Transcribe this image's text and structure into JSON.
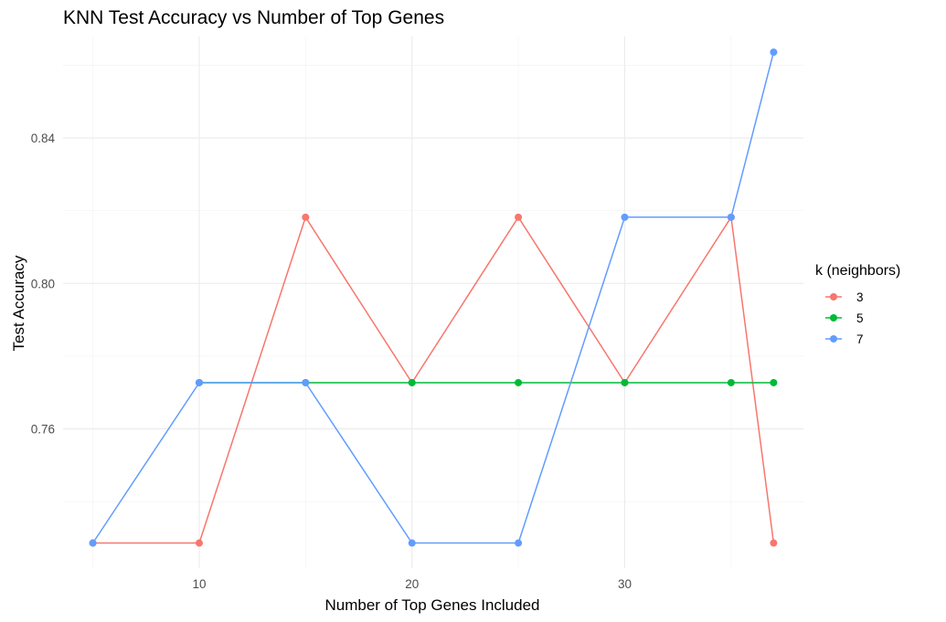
{
  "chart_data": {
    "type": "line",
    "title": "KNN Test Accuracy vs Number of Top Genes",
    "xlabel": "Number of Top Genes Included",
    "ylabel": "Test Accuracy",
    "xlim": [
      3.6,
      38.4
    ],
    "ylim": [
      0.7217,
      0.8679
    ],
    "x_ticks": [
      10,
      20,
      30
    ],
    "x_tick_labels": [
      "10",
      "20",
      "30"
    ],
    "y_ticks": [
      0.76,
      0.8,
      0.84
    ],
    "y_tick_labels": [
      "0.76",
      "0.80",
      "0.84"
    ],
    "x_minor_ticks": [
      5,
      15,
      25,
      35
    ],
    "y_minor_ticks": [
      0.74,
      0.78,
      0.82,
      0.86
    ],
    "grid": true,
    "legend": {
      "title": "k (neighbors)",
      "position": "right",
      "entries": [
        "3",
        "5",
        "7"
      ]
    },
    "series": [
      {
        "name": "3",
        "color": "#F8766D",
        "x": [
          5,
          10,
          15,
          20,
          25,
          30,
          35,
          37
        ],
        "y": [
          0.7286,
          0.7286,
          0.8182,
          0.7727,
          0.8182,
          0.7727,
          0.8182,
          0.7286
        ]
      },
      {
        "name": "5",
        "color": "#00BA38",
        "x": [
          10,
          15,
          20,
          25,
          30,
          35,
          37
        ],
        "y": [
          0.7727,
          0.7727,
          0.7727,
          0.7727,
          0.7727,
          0.7727,
          0.7727
        ]
      },
      {
        "name": "7",
        "color": "#619CFF",
        "x": [
          5,
          10,
          15,
          20,
          25,
          30,
          35,
          37
        ],
        "y": [
          0.7286,
          0.7727,
          0.7727,
          0.7286,
          0.7286,
          0.8182,
          0.8182,
          0.8636
        ]
      }
    ]
  }
}
